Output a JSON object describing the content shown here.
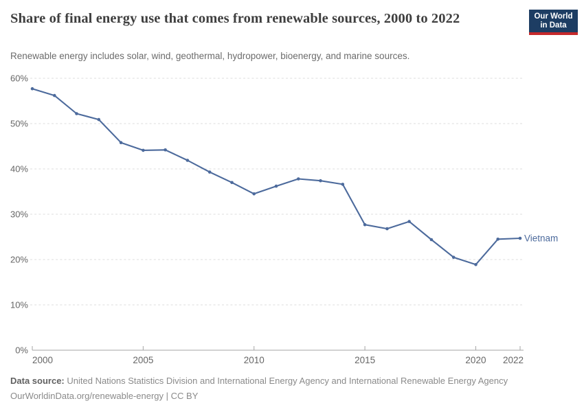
{
  "header": {
    "title": "Share of final energy use that comes from renewable sources, 2000 to 2022",
    "subtitle": "Renewable energy includes solar, wind, geothermal, hydropower, bioenergy, and marine sources.",
    "logo": {
      "line1": "Our World",
      "line2": "in Data",
      "bg_color": "#1d3d63",
      "accent_color": "#c5292b",
      "text_color": "#ffffff"
    }
  },
  "chart_data": {
    "type": "line",
    "title": "Share of final energy use that comes from renewable sources, 2000 to 2022",
    "subtitle": "Renewable energy includes solar, wind, geothermal, hydropower, bioenergy, and marine sources.",
    "x": [
      2000,
      2001,
      2002,
      2003,
      2004,
      2005,
      2006,
      2007,
      2008,
      2009,
      2010,
      2011,
      2012,
      2013,
      2014,
      2015,
      2016,
      2017,
      2018,
      2019,
      2020,
      2021,
      2022
    ],
    "series": [
      {
        "name": "Vietnam",
        "color": "#4c6a9c",
        "values": [
          57.7,
          56.2,
          52.2,
          50.9,
          45.8,
          44.1,
          44.2,
          41.9,
          39.3,
          37.0,
          34.5,
          36.2,
          37.8,
          37.4,
          36.6,
          27.7,
          26.8,
          28.4,
          24.4,
          20.5,
          18.9,
          24.5,
          24.7
        ]
      }
    ],
    "xlabel": "",
    "ylabel": "",
    "xlim": [
      2000,
      2022
    ],
    "ylim": [
      0,
      60
    ],
    "x_ticks": [
      2000,
      2005,
      2010,
      2015,
      2020,
      2022
    ],
    "y_ticks": [
      0,
      10,
      20,
      30,
      40,
      50,
      60
    ],
    "y_tick_labels": [
      "0%",
      "10%",
      "20%",
      "30%",
      "40%",
      "50%",
      "60%"
    ],
    "grid": "horizontal-dashed",
    "legend_position": "end-of-line",
    "gridline_color": "#dddddd",
    "axis_color": "#a5a5a5",
    "tick_label_color": "#666666"
  },
  "footer": {
    "datasource_label": "Data source:",
    "datasource_text": "United Nations Statistics Division and International Energy Agency and International Renewable Energy Agency",
    "attribution": "OurWorldinData.org/renewable-energy | CC BY"
  }
}
